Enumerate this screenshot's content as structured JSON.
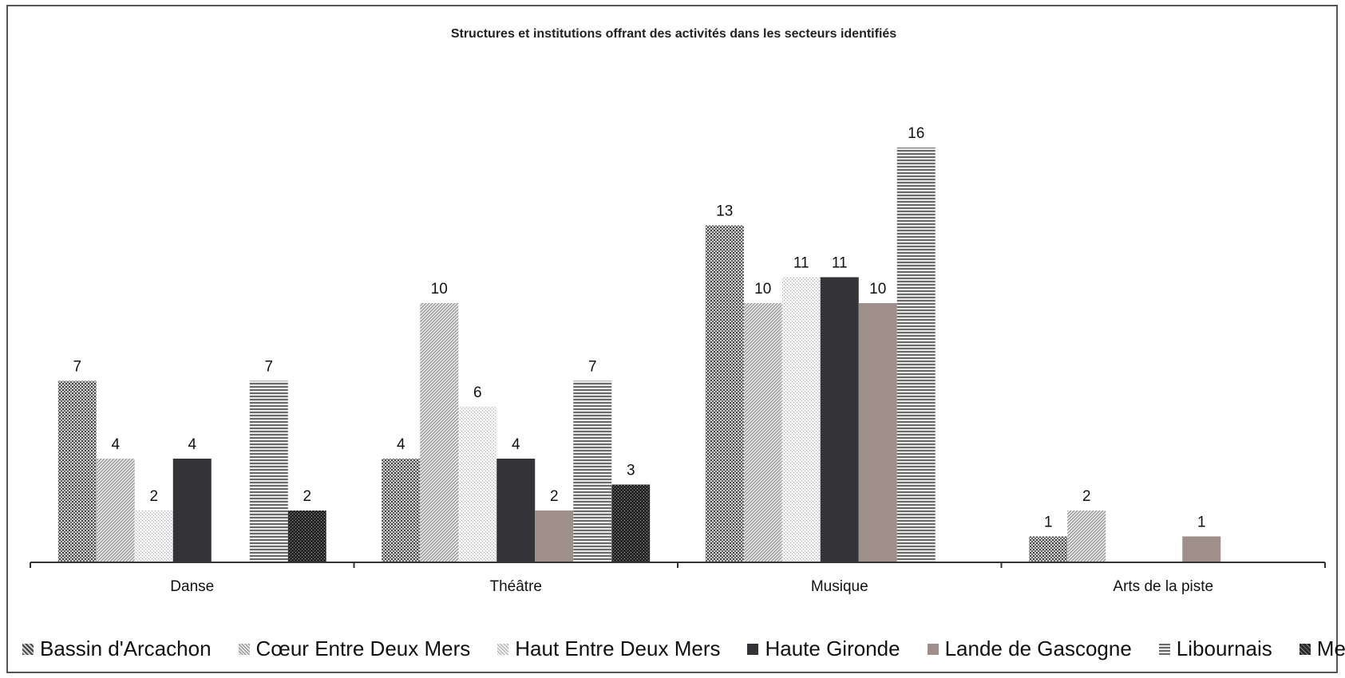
{
  "chart_data": {
    "type": "bar",
    "title": "Structures et institutions offrant des activités dans les secteurs identifiés",
    "xlabel": "",
    "ylabel": "",
    "categories": [
      "Danse",
      "Théâtre",
      "Musique",
      "Arts de la piste"
    ],
    "ylim": [
      0,
      17
    ],
    "grid": false,
    "legend_position": "bottom",
    "series": [
      {
        "name": "Bassin d'Arcachon",
        "values": [
          7,
          4,
          13,
          1
        ],
        "color": "#555555",
        "pattern": "dots-dense"
      },
      {
        "name": "Cœur Entre Deux Mers",
        "values": [
          4,
          10,
          10,
          2
        ],
        "color": "#8a8a8a",
        "pattern": "diagonal"
      },
      {
        "name": "Haut Entre Deux Mers",
        "values": [
          2,
          6,
          11,
          null
        ],
        "color": "#b5b5b5",
        "pattern": "dots-light"
      },
      {
        "name": "Haute Gironde",
        "values": [
          4,
          4,
          11,
          null
        ],
        "color": "#333338",
        "pattern": "solid"
      },
      {
        "name": "Lande de Gascogne",
        "values": [
          null,
          2,
          10,
          1
        ],
        "color": "#9e8f8a",
        "pattern": "solid"
      },
      {
        "name": "Libournais",
        "values": [
          7,
          7,
          16,
          null
        ],
        "color": "#666666",
        "pattern": "horizontal"
      },
      {
        "name": "Medoc",
        "values": [
          2,
          3,
          null,
          null
        ],
        "color": "#2a2a2a",
        "pattern": "dots-dark"
      }
    ]
  }
}
